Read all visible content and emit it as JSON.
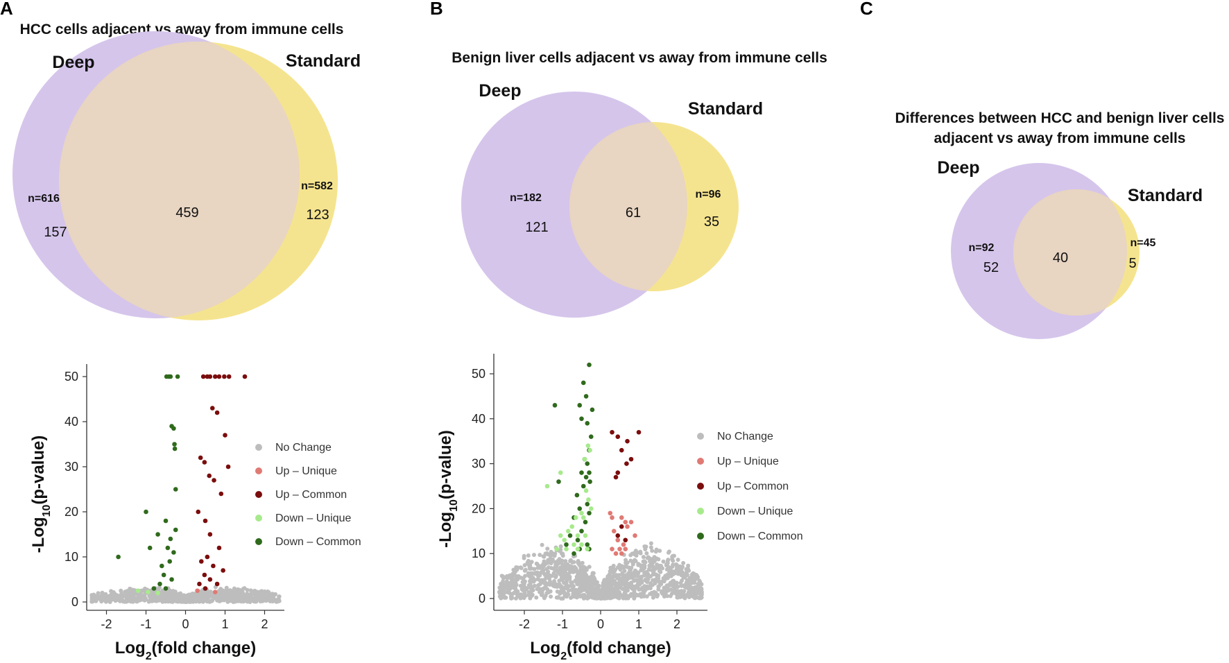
{
  "colors": {
    "deep": "#d5c5eb",
    "standard": "#f5e48f",
    "overlap": "#e8d5c2",
    "no_change": "#bdbdbd",
    "up_unique": "#e07a74",
    "up_common": "#7b0d0d",
    "down_unique": "#a7ea8c",
    "down_common": "#2f6a1c"
  },
  "panels": {
    "A": {
      "letter": "A",
      "venn": {
        "title": "HCC cells adjacent vs away from immune cells",
        "deep": {
          "name": "Deep",
          "n_label": "n=616",
          "unique_count": "157"
        },
        "standard": {
          "name": "Standard",
          "n_label": "n=582",
          "unique_count": "123"
        },
        "overlap_count": "459"
      }
    },
    "B": {
      "letter": "B",
      "venn": {
        "title": "Benign liver cells adjacent vs away from immune cells",
        "deep": {
          "name": "Deep",
          "n_label": "n=182",
          "unique_count": "121"
        },
        "standard": {
          "name": "Standard",
          "n_label": "n=96",
          "unique_count": "35"
        },
        "overlap_count": "61"
      }
    },
    "C": {
      "letter": "C",
      "venn": {
        "title_line1": "Differences between HCC and benign liver cells",
        "title_line2": "adjacent vs away from immune cells",
        "deep": {
          "name": "Deep",
          "n_label": "n=92",
          "unique_count": "52"
        },
        "standard": {
          "name": "Standard",
          "n_label": "n=45",
          "unique_count": "5"
        },
        "overlap_count": "40"
      }
    }
  },
  "chart_data": [
    {
      "id": "volcano-A",
      "type": "scatter",
      "title": "",
      "xlabel": "Log2(fold change)",
      "ylabel": "-Log10(p-value)",
      "xlim": [
        -2.5,
        2.5
      ],
      "ylim": [
        0,
        52
      ],
      "xticks": [
        "-2",
        "-1",
        "0",
        "1",
        "2"
      ],
      "yticks": [
        "0",
        "10",
        "20",
        "30",
        "40",
        "50"
      ],
      "legend": [
        "No Change",
        "Up – Unique",
        "Up – Common",
        "Down – Unique",
        "Down – Common"
      ],
      "series": [
        {
          "name": "Down – Common",
          "color": "down_common",
          "points": [
            [
              -0.48,
              50
            ],
            [
              -0.42,
              50
            ],
            [
              -0.38,
              50
            ],
            [
              -0.2,
              50
            ],
            [
              -0.35,
              39
            ],
            [
              -0.3,
              38.5
            ],
            [
              -0.28,
              35
            ],
            [
              -0.27,
              34
            ],
            [
              -0.25,
              25
            ],
            [
              -1.0,
              20
            ],
            [
              -1.7,
              10
            ],
            [
              -0.9,
              12
            ],
            [
              -0.7,
              15
            ],
            [
              -0.5,
              18
            ],
            [
              -0.45,
              12
            ],
            [
              -0.6,
              8
            ],
            [
              -0.4,
              9
            ],
            [
              -0.3,
              11
            ],
            [
              -0.55,
              6
            ],
            [
              -0.35,
              5
            ],
            [
              -0.65,
              4
            ],
            [
              -0.5,
              3
            ],
            [
              -0.8,
              3
            ],
            [
              -0.38,
              14
            ],
            [
              -0.25,
              16
            ]
          ]
        },
        {
          "name": "Up – Common",
          "color": "up_common",
          "points": [
            [
              0.45,
              50
            ],
            [
              0.55,
              50
            ],
            [
              0.62,
              50
            ],
            [
              0.75,
              50
            ],
            [
              0.85,
              50
            ],
            [
              0.98,
              50
            ],
            [
              1.1,
              50
            ],
            [
              1.5,
              50
            ],
            [
              0.68,
              43
            ],
            [
              0.8,
              42
            ],
            [
              1.0,
              37
            ],
            [
              0.38,
              32
            ],
            [
              0.48,
              31
            ],
            [
              0.6,
              28
            ],
            [
              1.08,
              30
            ],
            [
              0.72,
              27
            ],
            [
              0.9,
              24
            ],
            [
              0.32,
              20
            ],
            [
              0.5,
              18
            ],
            [
              0.62,
              15
            ],
            [
              0.85,
              12
            ],
            [
              0.55,
              10
            ],
            [
              0.4,
              9
            ],
            [
              0.7,
              8
            ],
            [
              0.95,
              7
            ],
            [
              0.48,
              6
            ],
            [
              0.62,
              5
            ],
            [
              0.35,
              4
            ],
            [
              0.8,
              4
            ],
            [
              0.5,
              3
            ]
          ]
        },
        {
          "name": "Down – Unique",
          "color": "down_unique",
          "points": [
            [
              -1.2,
              2.5
            ],
            [
              -0.95,
              2.2
            ],
            [
              -0.7,
              2
            ]
          ]
        },
        {
          "name": "Up – Unique",
          "color": "up_unique",
          "points": [
            [
              0.3,
              2.5
            ],
            [
              0.75,
              2.2
            ]
          ]
        }
      ]
    },
    {
      "id": "volcano-B",
      "type": "scatter",
      "title": "",
      "xlabel": "Log2(fold change)",
      "ylabel": "-Log10(p-value)",
      "xlim": [
        -2.8,
        2.8
      ],
      "ylim": [
        -2,
        53
      ],
      "xticks": [
        "-2",
        "-1",
        "0",
        "1",
        "2"
      ],
      "yticks": [
        "0",
        "10",
        "20",
        "30",
        "40",
        "50"
      ],
      "legend": [
        "No Change",
        "Up – Unique",
        "Up – Common",
        "Down – Unique",
        "Down – Common"
      ],
      "series": [
        {
          "name": "Down – Common",
          "color": "down_common",
          "points": [
            [
              -0.3,
              52
            ],
            [
              -0.45,
              48
            ],
            [
              -0.38,
              45
            ],
            [
              -1.2,
              43
            ],
            [
              -0.55,
              43
            ],
            [
              -0.22,
              42
            ],
            [
              -0.5,
              40
            ],
            [
              -0.35,
              39
            ],
            [
              -0.25,
              36
            ],
            [
              -0.3,
              33
            ],
            [
              -0.42,
              31
            ],
            [
              -0.35,
              30
            ],
            [
              -0.5,
              28
            ],
            [
              -0.3,
              28
            ],
            [
              -0.38,
              27
            ],
            [
              -0.28,
              26
            ],
            [
              -1.1,
              26
            ],
            [
              -0.45,
              25
            ],
            [
              -0.62,
              23
            ],
            [
              -0.35,
              21
            ],
            [
              -0.55,
              20
            ],
            [
              -0.3,
              19
            ],
            [
              -0.7,
              18
            ],
            [
              -0.4,
              17
            ],
            [
              -0.5,
              15
            ],
            [
              -0.8,
              14
            ],
            [
              -0.6,
              13
            ],
            [
              -0.35,
              12
            ],
            [
              -0.9,
              12
            ],
            [
              -0.55,
              11
            ],
            [
              -0.3,
              11
            ],
            [
              -0.7,
              10
            ]
          ]
        },
        {
          "name": "Down – Unique",
          "color": "down_unique",
          "points": [
            [
              -0.33,
              34
            ],
            [
              -0.28,
              33
            ],
            [
              -0.42,
              31
            ],
            [
              -1.05,
              28
            ],
            [
              -1.4,
              25
            ],
            [
              -0.38,
              24
            ],
            [
              -0.32,
              22
            ],
            [
              -0.25,
              20
            ],
            [
              -0.5,
              19
            ],
            [
              -0.45,
              18
            ],
            [
              -0.65,
              18
            ],
            [
              -0.75,
              16
            ],
            [
              -0.85,
              15
            ],
            [
              -1.05,
              14
            ],
            [
              -0.6,
              14
            ],
            [
              -0.4,
              14
            ],
            [
              -0.95,
              13
            ],
            [
              -0.7,
              12
            ],
            [
              -0.5,
              12
            ],
            [
              -1.15,
              11
            ],
            [
              -0.9,
              11
            ],
            [
              -0.6,
              11
            ],
            [
              -0.35,
              11
            ]
          ]
        },
        {
          "name": "Up – Common",
          "color": "up_common",
          "points": [
            [
              1.0,
              37
            ],
            [
              0.3,
              37
            ],
            [
              0.45,
              36
            ],
            [
              0.7,
              35
            ],
            [
              0.55,
              33
            ],
            [
              0.8,
              31
            ],
            [
              0.68,
              30
            ],
            [
              0.45,
              28
            ],
            [
              0.4,
              27
            ],
            [
              0.55,
              16
            ],
            [
              0.45,
              14
            ],
            [
              0.65,
              13
            ]
          ]
        },
        {
          "name": "Up – Unique",
          "color": "up_unique",
          "points": [
            [
              0.25,
              19
            ],
            [
              0.3,
              18
            ],
            [
              0.55,
              18
            ],
            [
              0.65,
              17
            ],
            [
              0.8,
              17
            ],
            [
              0.7,
              16
            ],
            [
              0.35,
              15
            ],
            [
              0.9,
              14
            ],
            [
              0.45,
              13
            ],
            [
              0.6,
              12
            ],
            [
              0.5,
              11
            ],
            [
              0.3,
              11
            ],
            [
              0.65,
              11
            ],
            [
              0.4,
              10
            ],
            [
              0.55,
              10
            ]
          ]
        }
      ]
    }
  ]
}
